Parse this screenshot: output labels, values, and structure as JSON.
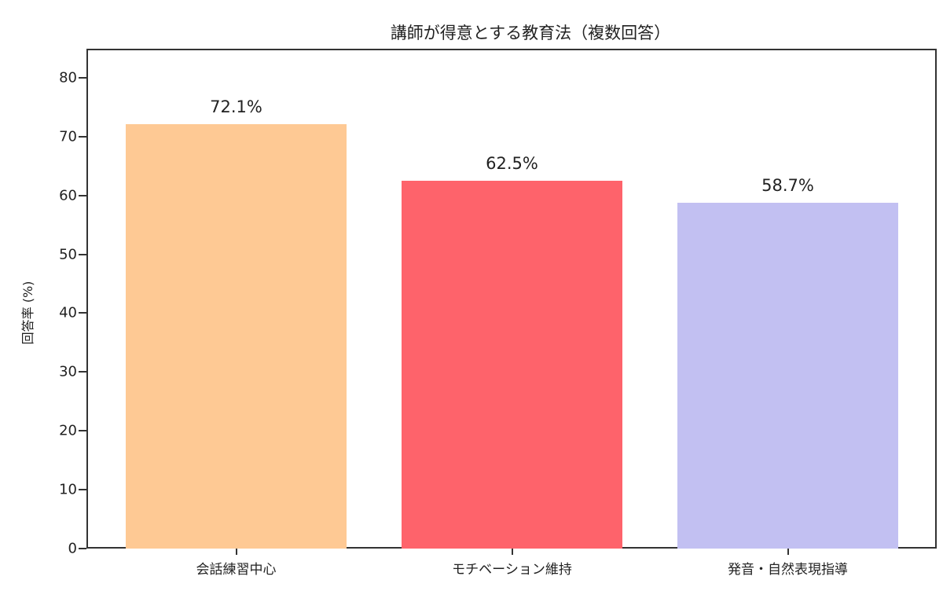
{
  "chart_data": {
    "type": "bar",
    "title": "講師が得意とする教育法（複数回答）",
    "xlabel": "",
    "ylabel": "回答率 (%)",
    "ylim": [
      0,
      85
    ],
    "yticks": [
      "0",
      "10",
      "20",
      "30",
      "40",
      "50",
      "60",
      "70",
      "80"
    ],
    "grid": false,
    "categories": [
      "会話練習中心",
      "モチベーション維持",
      "発音・自然表現指導"
    ],
    "values": [
      72.1,
      62.5,
      58.7
    ],
    "value_labels": [
      "72.1%",
      "62.5%",
      "58.7%"
    ],
    "colors": [
      "#fec994",
      "#fe636b",
      "#c2c0f2"
    ]
  }
}
